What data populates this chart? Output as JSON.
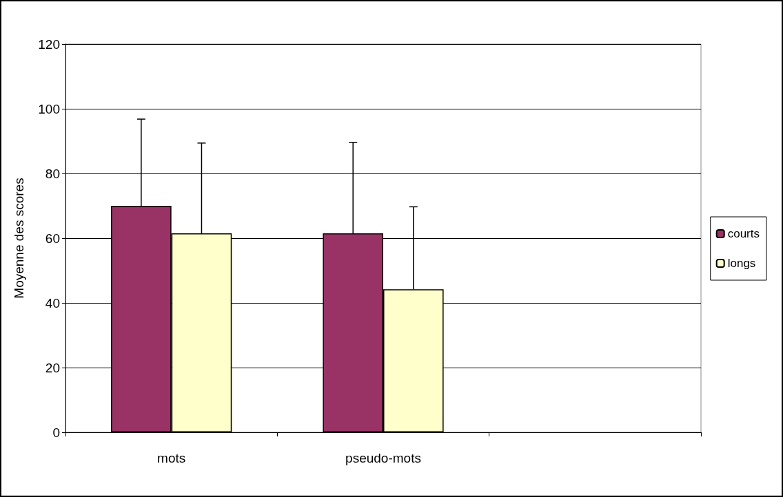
{
  "chart_data": {
    "type": "bar",
    "ylabel": "Moyenne des scores",
    "categories": [
      "mots",
      "pseudo-mots",
      null
    ],
    "series": [
      {
        "name": "courts",
        "color": "#993366",
        "values": [
          70,
          61.5,
          null
        ],
        "errors": [
          [
            70,
            96.8
          ],
          [
            61.5,
            89.6
          ],
          null
        ]
      },
      {
        "name": "longs",
        "color": "#ffffcc",
        "values": [
          61.5,
          44.2,
          null
        ],
        "errors": [
          [
            61.5,
            89.4
          ],
          [
            44.2,
            69.7
          ],
          null
        ]
      }
    ],
    "ylim": [
      0,
      120
    ],
    "yticks": [
      0,
      20,
      40,
      60,
      80,
      100,
      120
    ],
    "grid": "y",
    "legend": "right"
  }
}
